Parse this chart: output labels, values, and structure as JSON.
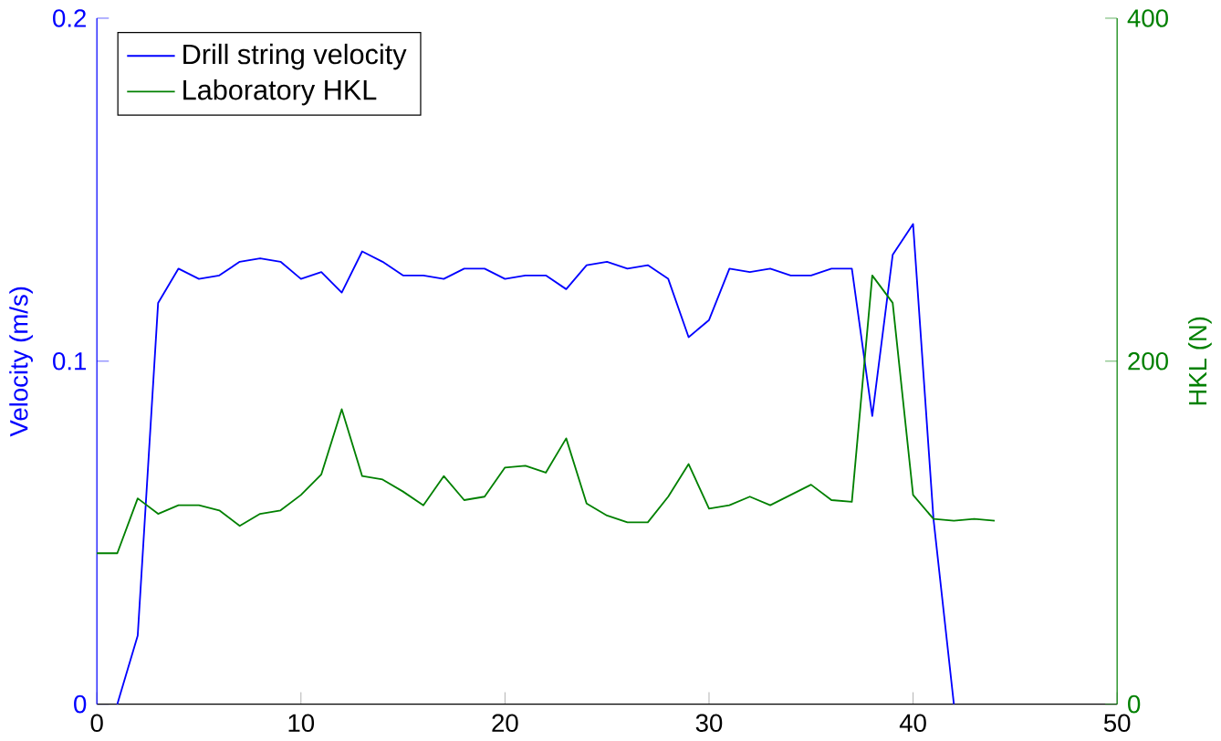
{
  "chart_data": {
    "type": "line",
    "xlabel": null,
    "ylabel": "Velocity (m/s)",
    "y2label": "HKL (N)",
    "xlim": [
      0,
      50
    ],
    "xticks": [
      0,
      10,
      20,
      30,
      40,
      50
    ],
    "ylim": [
      0,
      0.2
    ],
    "yticks": [
      0,
      0.1,
      0.2
    ],
    "y2lim": [
      0,
      400
    ],
    "y2ticks": [
      0,
      200,
      400
    ],
    "legend": "top left",
    "grid": false,
    "series": [
      {
        "name": "Drill string velocity",
        "color": "#0000ff",
        "x": [
          1,
          2,
          3,
          4,
          5,
          6,
          7,
          8,
          9,
          10,
          11,
          12,
          13,
          14,
          15,
          16,
          17,
          18,
          19,
          20,
          21,
          22,
          23,
          24,
          25,
          26,
          27,
          28,
          29,
          30,
          31,
          32,
          33,
          34,
          35,
          36,
          37,
          38,
          39,
          40,
          41,
          42
        ],
        "values": [
          0,
          0.02,
          0.117,
          0.127,
          0.124,
          0.125,
          0.129,
          0.13,
          0.129,
          0.124,
          0.126,
          0.12,
          0.132,
          0.129,
          0.125,
          0.125,
          0.124,
          0.127,
          0.127,
          0.124,
          0.125,
          0.125,
          0.121,
          0.128,
          0.129,
          0.127,
          0.128,
          0.124,
          0.107,
          0.112,
          0.127,
          0.126,
          0.127,
          0.125,
          0.125,
          0.127,
          0.127,
          0.084,
          0.131,
          0.14,
          0.054,
          0
        ]
      },
      {
        "name": "Laboratory HKL",
        "color": "#008000",
        "axis": "y2",
        "x": [
          0,
          1,
          2,
          3,
          4,
          5,
          6,
          7,
          8,
          9,
          10,
          11,
          12,
          13,
          14,
          15,
          16,
          17,
          18,
          19,
          20,
          21,
          22,
          23,
          24,
          25,
          26,
          27,
          28,
          29,
          30,
          31,
          32,
          33,
          34,
          35,
          36,
          37,
          38,
          39,
          40,
          41,
          42,
          43,
          44
        ],
        "values": [
          88,
          88,
          120,
          111,
          116,
          116,
          113,
          104,
          111,
          113,
          122,
          134,
          172,
          133,
          131,
          124,
          116,
          133,
          119,
          121,
          138,
          139,
          135,
          155,
          117,
          110,
          106,
          106,
          121,
          140,
          114,
          116,
          121,
          116,
          122,
          128,
          119,
          118,
          250,
          234,
          122,
          108,
          107,
          108,
          107
        ]
      }
    ]
  }
}
